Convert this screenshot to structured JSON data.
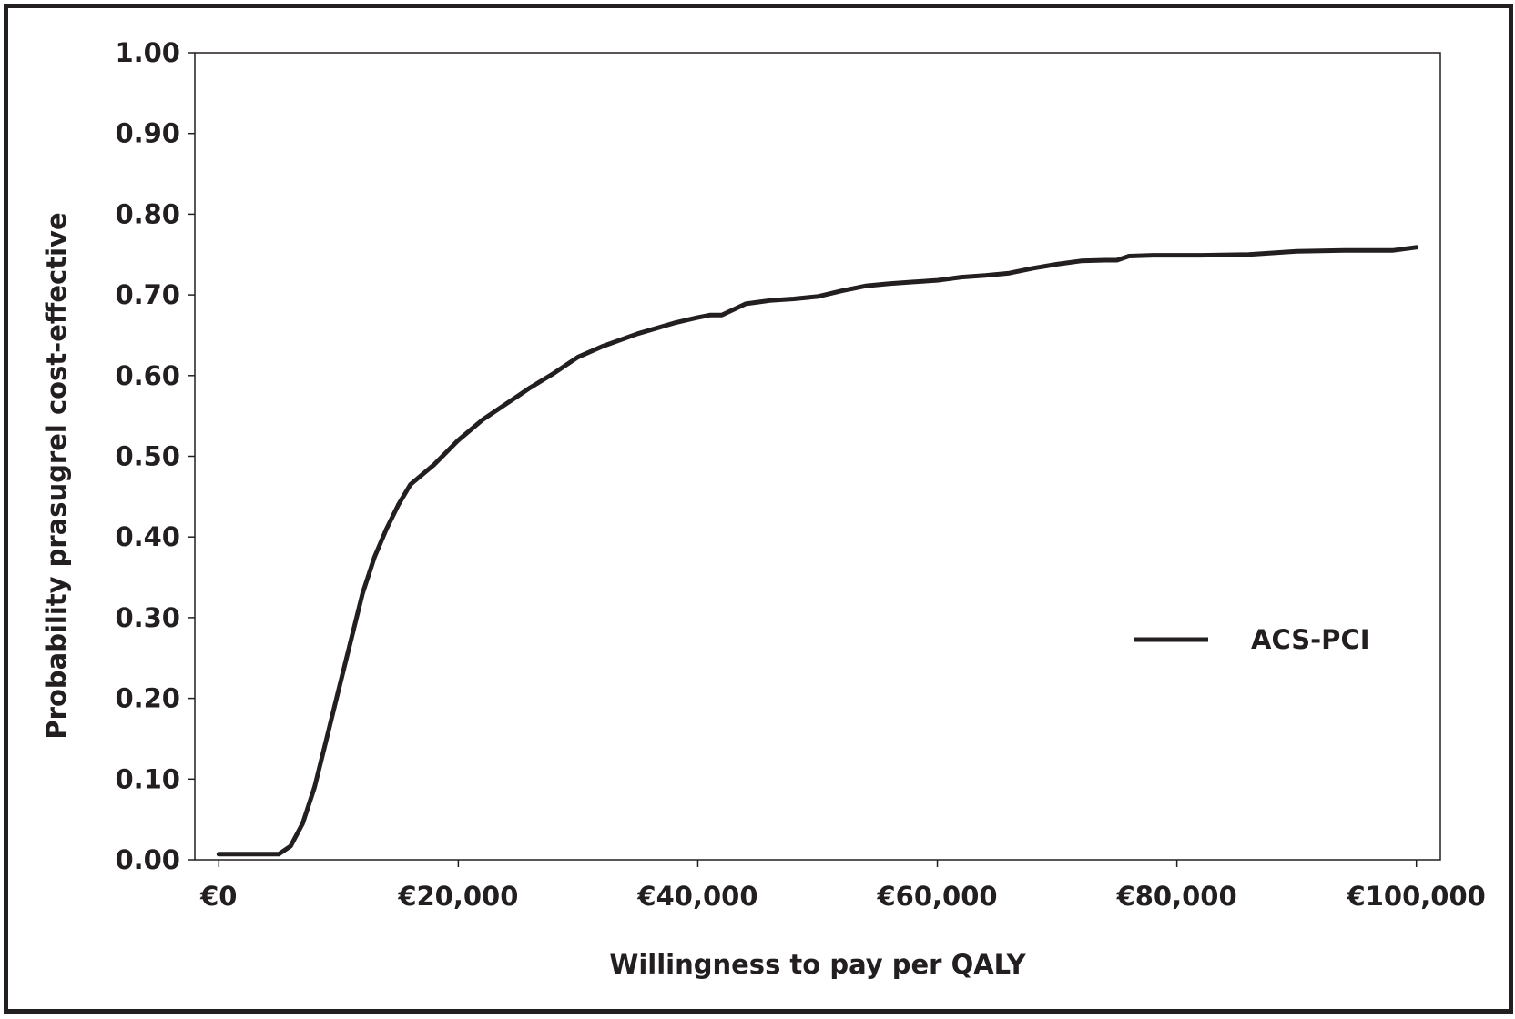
{
  "chart_data": {
    "type": "line",
    "xlabel": "Willingness to pay per QALY",
    "ylabel": "Probability prasugrel cost-effective",
    "xlim": [
      -2000,
      102000
    ],
    "ylim": [
      0,
      1
    ],
    "x_ticks": [
      0,
      20000,
      40000,
      60000,
      80000,
      100000
    ],
    "x_tick_labels": [
      "€0",
      "€20,000",
      "€40,000",
      "€60,000",
      "€80,000",
      "€100,000"
    ],
    "y_ticks": [
      0,
      0.1,
      0.2,
      0.3,
      0.4,
      0.5,
      0.6,
      0.7,
      0.8,
      0.9,
      1.0
    ],
    "y_tick_labels": [
      "0.00",
      "0.10",
      "0.20",
      "0.30",
      "0.40",
      "0.50",
      "0.60",
      "0.70",
      "0.80",
      "0.90",
      "1.00"
    ],
    "grid": false,
    "legend_position": "right",
    "series": [
      {
        "name": "ACS-PCI",
        "color": "#231f20",
        "x": [
          0,
          1000,
          2000,
          3000,
          4000,
          5000,
          6000,
          7000,
          8000,
          9000,
          10000,
          11000,
          12000,
          13000,
          14000,
          15000,
          16000,
          18000,
          20000,
          22000,
          24000,
          25000,
          26000,
          28000,
          30000,
          32000,
          35000,
          38000,
          40000,
          41000,
          42000,
          43000,
          44000,
          45000,
          46000,
          48000,
          50000,
          52000,
          54000,
          56000,
          58000,
          60000,
          62000,
          64000,
          66000,
          68000,
          70000,
          72000,
          74000,
          75000,
          76000,
          78000,
          80000,
          82000,
          86000,
          88000,
          90000,
          94000,
          98000,
          100000
        ],
        "values": [
          0.007,
          0.007,
          0.007,
          0.007,
          0.007,
          0.007,
          0.017,
          0.045,
          0.09,
          0.15,
          0.21,
          0.27,
          0.33,
          0.375,
          0.41,
          0.44,
          0.465,
          0.49,
          0.52,
          0.545,
          0.565,
          0.575,
          0.585,
          0.603,
          0.623,
          0.636,
          0.652,
          0.665,
          0.672,
          0.675,
          0.675,
          0.682,
          0.689,
          0.691,
          0.693,
          0.695,
          0.698,
          0.705,
          0.711,
          0.714,
          0.716,
          0.718,
          0.722,
          0.724,
          0.727,
          0.733,
          0.738,
          0.742,
          0.743,
          0.743,
          0.748,
          0.749,
          0.749,
          0.749,
          0.75,
          0.752,
          0.754,
          0.755,
          0.755,
          0.759
        ]
      }
    ]
  }
}
